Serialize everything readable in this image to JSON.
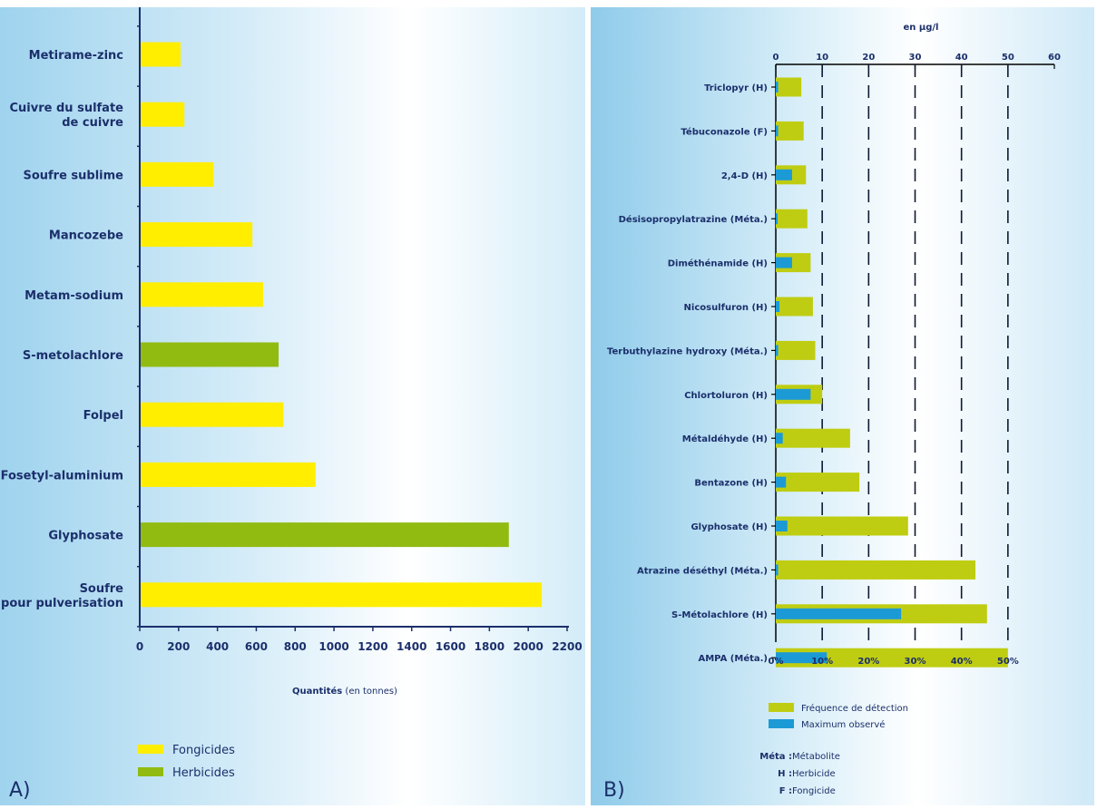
{
  "colors": {
    "fongicides": "#ffee00",
    "herbicides": "#92bb12",
    "freq": "#bfcd12",
    "max": "#1c9ad6",
    "text": "#1b2f6b"
  },
  "panel_a": {
    "letter": "A)"
  },
  "panel_b": {
    "letter": "B)"
  },
  "chart_data": [
    {
      "type": "bar",
      "orientation": "horizontal",
      "categories": [
        "Metirame-zinc",
        "Cuivre du sulfate de cuivre",
        "Soufre sublime",
        "Mancozebe",
        "Metam-sodium",
        "S-metolachlore",
        "Folpel",
        "Fosetyl-aluminium",
        "Glyphosate",
        "Soufre pour pulverisation"
      ],
      "category_lines": [
        [
          "Metirame-zinc"
        ],
        [
          "Cuivre du sulfate",
          "de cuivre"
        ],
        [
          "Soufre sublime"
        ],
        [
          "Mancozebe"
        ],
        [
          "Metam-sodium"
        ],
        [
          "S-metolachlore"
        ],
        [
          "Folpel"
        ],
        [
          "Fosetyl-aluminium"
        ],
        [
          "Glyphosate"
        ],
        [
          "Soufre",
          "pour pulverisation"
        ]
      ],
      "values": [
        210,
        230,
        380,
        580,
        635,
        715,
        740,
        905,
        1900,
        2070
      ],
      "groups": [
        "Fongicides",
        "Fongicides",
        "Fongicides",
        "Fongicides",
        "Fongicides",
        "Herbicides",
        "Fongicides",
        "Fongicides",
        "Herbicides",
        "Fongicides"
      ],
      "xlim": [
        0,
        2200
      ],
      "xticks": [
        0,
        200,
        400,
        600,
        800,
        1000,
        1200,
        1400,
        1600,
        1800,
        2000,
        2200
      ],
      "xlabel_bold": "Quantités",
      "xlabel_rest": " (en tonnes)",
      "legend": [
        {
          "name": "Fongicides"
        },
        {
          "name": "Herbicides"
        }
      ],
      "grid": false
    },
    {
      "type": "bar",
      "orientation": "horizontal",
      "categories": [
        "Triclopyr (H)",
        "Tébuconazole (F)",
        "2,4-D (H)",
        "Désisopropylatrazine (Méta.)",
        "Diméthénamide (H)",
        "Nicosulfuron (H)",
        "Terbuthylazine hydroxy (Méta.)",
        "Chlortoluron (H)",
        "Métaldéhyde (H)",
        "Bentazone (H)",
        "Glyphosate (H)",
        "Atrazine déséthyl (Méta.)",
        "S-Métolachlore (H)",
        "AMPA (Méta.)"
      ],
      "top_axis_label": "en µg/l",
      "top_ticks": [
        0,
        10,
        20,
        30,
        40,
        50,
        60
      ],
      "top_lim": [
        0,
        60
      ],
      "bottom_ticks": [
        "0%",
        "10%",
        "20%",
        "30%",
        "40%",
        "50%"
      ],
      "bottom_lim": [
        0,
        60
      ],
      "series": [
        {
          "name": "Fréquence de détection",
          "unit": "%",
          "values": [
            5.5,
            6,
            6.5,
            6.8,
            7.5,
            8,
            8.5,
            10,
            16,
            18,
            28.5,
            43,
            45.5,
            50
          ]
        },
        {
          "name": "Maximum observé",
          "unit": "µg/l",
          "values": [
            0.5,
            0.5,
            3.5,
            0.3,
            3.5,
            0.8,
            0.5,
            7.5,
            1.5,
            2.2,
            2.5,
            0.5,
            27,
            11
          ]
        }
      ],
      "grid_dashed_at": [
        10,
        20,
        30,
        40,
        50
      ],
      "notes": [
        {
          "key": "Méta :",
          "text": " Métabolite"
        },
        {
          "key": "H :",
          "text": " Herbicide"
        },
        {
          "key": "F :",
          "text": " Fongicide"
        }
      ]
    }
  ]
}
